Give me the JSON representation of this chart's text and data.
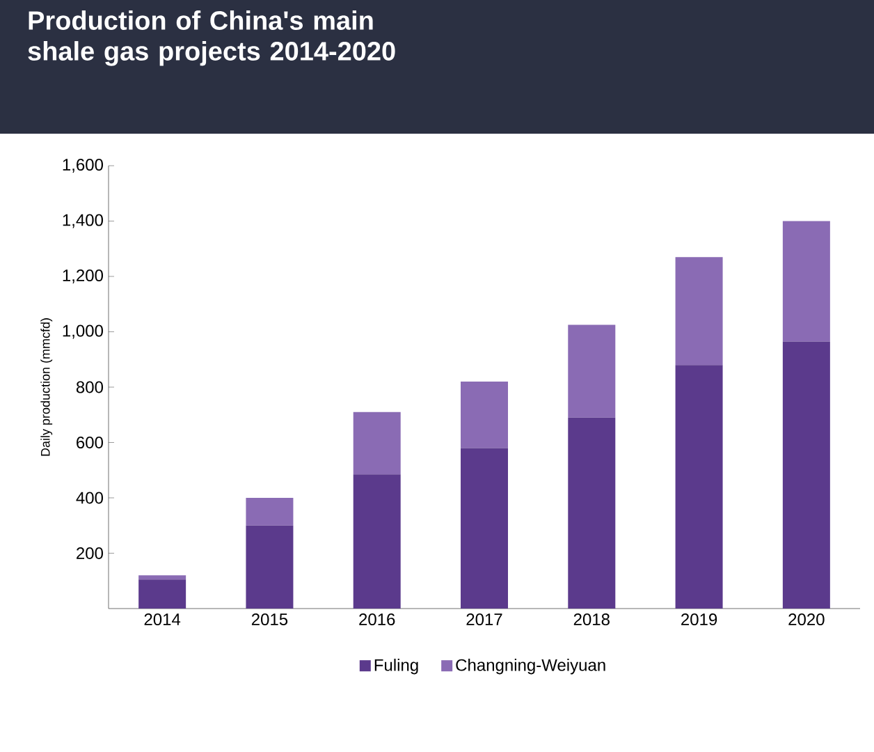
{
  "chart_data": {
    "type": "bar",
    "title": "Production of China's main shale gas projects 2014-2020",
    "ylabel": "Daily production (mmcfd)",
    "categories": [
      "2014",
      "2015",
      "2016",
      "2017",
      "2018",
      "2019",
      "2020"
    ],
    "stacked": true,
    "series": [
      {
        "name": "Fuling",
        "color": "#5b3a8c",
        "values": [
          105,
          300,
          485,
          580,
          690,
          880,
          965
        ]
      },
      {
        "name": "Changning-Weiyuan",
        "color": "#8a6bb4",
        "values": [
          15,
          100,
          225,
          240,
          335,
          390,
          435
        ]
      }
    ],
    "ylim": [
      0,
      1600
    ],
    "yticks": [
      {
        "value": 200,
        "label": "200"
      },
      {
        "value": 400,
        "label": "400"
      },
      {
        "value": 600,
        "label": "600"
      },
      {
        "value": 800,
        "label": "800"
      },
      {
        "value": 1000,
        "label": "1,000"
      },
      {
        "value": 1200,
        "label": "1,200"
      },
      {
        "value": 1400,
        "label": "1,400"
      },
      {
        "value": 1600,
        "label": "1,600"
      }
    ],
    "grid": false,
    "legend": "bottom"
  }
}
